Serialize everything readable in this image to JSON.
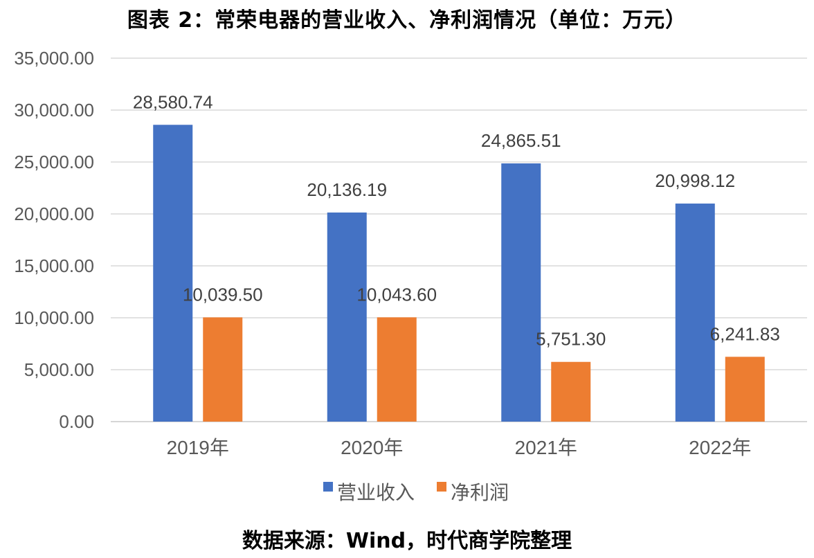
{
  "chart_data": {
    "type": "bar",
    "title": "图表 2：常荣电器的营业收入、净利润情况（单位：万元）",
    "categories": [
      "2019年",
      "2020年",
      "2021年",
      "2022年"
    ],
    "series": [
      {
        "name": "营业收入",
        "color": "#4472C4",
        "values": [
          28580.74,
          20136.19,
          24865.51,
          20998.12
        ],
        "labels": [
          "28,580.74",
          "20,136.19",
          "24,865.51",
          "20,998.12"
        ]
      },
      {
        "name": "净利润",
        "color": "#ED7D31",
        "values": [
          10039.5,
          10043.6,
          5751.3,
          6241.83
        ],
        "labels": [
          "10,039.50",
          "10,043.60",
          "5,751.30",
          "6,241.83"
        ]
      }
    ],
    "ylim": [
      0,
      35000
    ],
    "yticks": [
      0,
      5000,
      10000,
      15000,
      20000,
      25000,
      30000,
      35000
    ],
    "ytick_labels": [
      "0.00",
      "5,000.00",
      "10,000.00",
      "15,000.00",
      "20,000.00",
      "25,000.00",
      "30,000.00",
      "35,000.00"
    ],
    "grid": true,
    "legend_position": "bottom",
    "source": "数据来源：Wind，时代商学院整理"
  }
}
